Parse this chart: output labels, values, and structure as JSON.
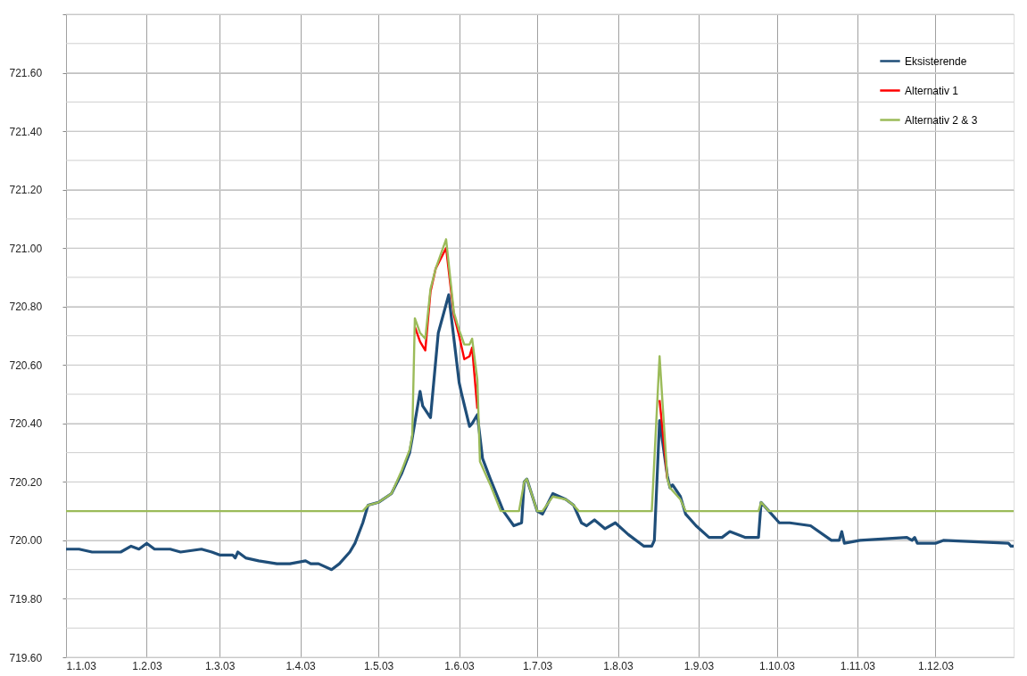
{
  "chart_data": {
    "type": "line",
    "xlim": [
      "2003-01-01",
      "2003-12-31"
    ],
    "xticks": [
      {
        "value": "2003-01-01",
        "label": "1.1.03"
      },
      {
        "value": "2003-02-01",
        "label": "1.2.03"
      },
      {
        "value": "2003-03-01",
        "label": "1.3.03"
      },
      {
        "value": "2003-04-01",
        "label": "1.4.03"
      },
      {
        "value": "2003-05-01",
        "label": "1.5.03"
      },
      {
        "value": "2003-06-01",
        "label": "1.6.03"
      },
      {
        "value": "2003-07-01",
        "label": "1.7.03"
      },
      {
        "value": "2003-08-01",
        "label": "1.8.03"
      },
      {
        "value": "2003-09-01",
        "label": "1.9.03"
      },
      {
        "value": "2003-10-01",
        "label": "1.10.03"
      },
      {
        "value": "2003-11-01",
        "label": "1.11.03"
      },
      {
        "value": "2003-12-01",
        "label": "1.12.03"
      }
    ],
    "ylim": [
      719.6,
      721.8
    ],
    "yticks": [
      {
        "value": 719.6,
        "label": "719.60"
      },
      {
        "value": 719.7,
        "label": null
      },
      {
        "value": 719.8,
        "label": "719.80"
      },
      {
        "value": 719.9,
        "label": null
      },
      {
        "value": 720.0,
        "label": "720.00"
      },
      {
        "value": 720.1,
        "label": null
      },
      {
        "value": 720.2,
        "label": "720.20"
      },
      {
        "value": 720.3,
        "label": null
      },
      {
        "value": 720.4,
        "label": "720.40"
      },
      {
        "value": 720.5,
        "label": null
      },
      {
        "value": 720.6,
        "label": "720.60"
      },
      {
        "value": 720.7,
        "label": null
      },
      {
        "value": 720.8,
        "label": "720.80"
      },
      {
        "value": 720.9,
        "label": null
      },
      {
        "value": 721.0,
        "label": "721.00"
      },
      {
        "value": 721.1,
        "label": null
      },
      {
        "value": 721.2,
        "label": "721.20"
      },
      {
        "value": 721.3,
        "label": null
      },
      {
        "value": 721.4,
        "label": "721.40"
      },
      {
        "value": 721.5,
        "label": null
      },
      {
        "value": 721.6,
        "label": "721.60"
      },
      {
        "value": 721.7,
        "label": null
      },
      {
        "value": 721.8,
        "label": null
      }
    ],
    "grid": true,
    "legend": "top right",
    "line_style": "solid",
    "marker": "none",
    "series": [
      {
        "name": "Eksisterende",
        "color": "#1f4e79",
        "x": [
          "2003-01-01",
          "2003-01-06",
          "2003-01-11",
          "2003-01-22",
          "2003-01-26",
          "2003-01-29",
          "2003-02-01",
          "2003-02-04",
          "2003-02-10",
          "2003-02-14",
          "2003-02-22",
          "2003-02-26",
          "2003-03-01",
          "2003-03-06",
          "2003-03-07",
          "2003-03-08",
          "2003-03-11",
          "2003-03-16",
          "2003-03-23",
          "2003-03-28",
          "2003-04-03",
          "2003-04-05",
          "2003-04-08",
          "2003-04-13",
          "2003-04-16",
          "2003-04-20",
          "2003-04-22",
          "2003-04-25",
          "2003-04-27",
          "2003-05-01",
          "2003-05-06",
          "2003-05-10",
          "2003-05-13",
          "2003-05-14",
          "2003-05-17",
          "2003-05-18",
          "2003-05-21",
          "2003-05-24",
          "2003-05-28",
          "2003-06-01",
          "2003-06-02",
          "2003-06-05",
          "2003-06-06",
          "2003-06-08",
          "2003-06-10",
          "2003-06-13",
          "2003-06-18",
          "2003-06-22",
          "2003-06-25",
          "2003-06-26",
          "2003-06-27",
          "2003-07-01",
          "2003-07-03",
          "2003-07-07",
          "2003-07-12",
          "2003-07-15",
          "2003-07-18",
          "2003-07-20",
          "2003-07-23",
          "2003-07-27",
          "2003-07-31",
          "2003-08-05",
          "2003-08-11",
          "2003-08-14",
          "2003-08-15",
          "2003-08-17",
          "2003-08-20",
          "2003-08-21",
          "2003-08-22",
          "2003-08-25",
          "2003-08-27",
          "2003-08-31",
          "2003-09-05",
          "2003-09-10",
          "2003-09-13",
          "2003-09-19",
          "2003-09-24",
          "2003-09-25",
          "2003-09-28",
          "2003-10-02",
          "2003-10-06",
          "2003-10-14",
          "2003-10-22",
          "2003-10-25",
          "2003-10-26",
          "2003-10-27",
          "2003-11-02",
          "2003-11-20",
          "2003-11-22",
          "2003-11-23",
          "2003-11-24",
          "2003-12-01",
          "2003-12-04",
          "2003-12-29",
          "2003-12-30",
          "2003-12-31"
        ],
        "values": [
          719.97,
          719.97,
          719.96,
          719.96,
          719.98,
          719.97,
          719.99,
          719.97,
          719.97,
          719.96,
          719.97,
          719.96,
          719.95,
          719.95,
          719.94,
          719.96,
          719.94,
          719.93,
          719.92,
          719.92,
          719.93,
          719.92,
          719.92,
          719.9,
          719.92,
          719.96,
          719.99,
          720.06,
          720.12,
          720.13,
          720.16,
          720.23,
          720.3,
          720.35,
          720.51,
          720.46,
          720.42,
          720.71,
          720.84,
          720.54,
          720.5,
          720.39,
          720.4,
          720.43,
          720.28,
          720.21,
          720.1,
          720.05,
          720.06,
          720.2,
          720.21,
          720.1,
          720.09,
          720.16,
          720.14,
          720.12,
          720.06,
          720.05,
          720.07,
          720.04,
          720.06,
          720.02,
          719.98,
          719.98,
          720.0,
          720.41,
          720.22,
          720.18,
          720.19,
          720.15,
          720.09,
          720.05,
          720.01,
          720.01,
          720.03,
          720.01,
          720.01,
          720.13,
          720.1,
          720.06,
          720.06,
          720.05,
          720.0,
          720.0,
          720.03,
          719.99,
          720.0,
          720.01,
          720.0,
          720.01,
          719.99,
          719.99,
          720.0,
          719.99,
          719.98,
          719.98
        ]
      },
      {
        "name": "Alternativ 1",
        "color": "#ff0000",
        "x": [
          "2003-05-15",
          "2003-05-17",
          "2003-05-19",
          "2003-05-21",
          "2003-05-23",
          "2003-05-27",
          "2003-05-30",
          "2003-06-01",
          "2003-06-03",
          "2003-06-05",
          "2003-06-06",
          "2003-06-08",
          "2003-07-01",
          "2003-08-17",
          "2003-08-20"
        ],
        "values": [
          720.73,
          720.68,
          720.65,
          720.85,
          720.93,
          721.0,
          720.77,
          720.7,
          720.62,
          720.63,
          720.66,
          720.45,
          null,
          720.48,
          720.21
        ]
      },
      {
        "name": "Alternativ 2 & 3",
        "color": "#9bbb59",
        "x": [
          "2003-01-01",
          "2003-04-25",
          "2003-04-27",
          "2003-05-01",
          "2003-05-06",
          "2003-05-10",
          "2003-05-13",
          "2003-05-14",
          "2003-05-15",
          "2003-05-17",
          "2003-05-19",
          "2003-05-21",
          "2003-05-23",
          "2003-05-27",
          "2003-05-30",
          "2003-06-01",
          "2003-06-03",
          "2003-06-05",
          "2003-06-06",
          "2003-06-08",
          "2003-06-09",
          "2003-06-13",
          "2003-06-17",
          "2003-06-24",
          "2003-06-26",
          "2003-06-27",
          "2003-07-01",
          "2003-07-03",
          "2003-07-07",
          "2003-07-12",
          "2003-07-15",
          "2003-07-17",
          "2003-08-14",
          "2003-08-17",
          "2003-08-20",
          "2003-08-21",
          "2003-08-25",
          "2003-08-27",
          "2003-09-24",
          "2003-09-25",
          "2003-09-28",
          "2003-12-31"
        ],
        "values": [
          720.1,
          720.1,
          720.12,
          720.13,
          720.16,
          720.24,
          720.31,
          720.36,
          720.76,
          720.71,
          720.69,
          720.86,
          720.93,
          721.03,
          720.78,
          720.72,
          720.67,
          720.67,
          720.69,
          720.55,
          720.27,
          720.19,
          720.1,
          720.1,
          720.2,
          720.21,
          720.1,
          720.1,
          720.15,
          720.14,
          720.12,
          720.1,
          720.1,
          720.63,
          720.21,
          720.18,
          720.14,
          720.1,
          720.1,
          720.13,
          720.1,
          720.1
        ]
      }
    ]
  }
}
